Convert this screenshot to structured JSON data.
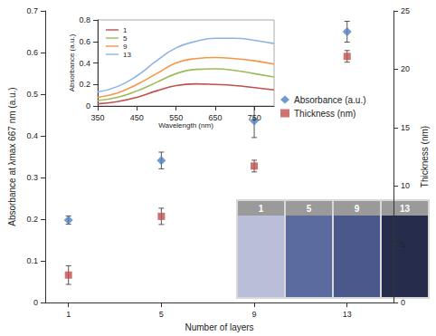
{
  "chart_data": [
    {
      "type": "scatter",
      "xlabel": "Number of layers",
      "ylabel": "Absorbance at λmax 667 nm (a.u.)",
      "y2label": "Thickness (nm)",
      "xlim": [
        0,
        15
      ],
      "xticks": [
        1,
        5,
        9,
        13
      ],
      "ylim": [
        0,
        0.7
      ],
      "yticks": [
        0,
        0.1,
        0.2,
        0.3,
        0.4,
        0.5,
        0.6,
        0.7
      ],
      "y2lim": [
        0,
        25
      ],
      "y2ticks": [
        0,
        5,
        10,
        15,
        20,
        25
      ],
      "grid": false,
      "legend": "right",
      "series": [
        {
          "name": "Absorbance (a.u.)",
          "color": "#4f81bd",
          "marker": "diamond",
          "x": [
            1,
            5,
            9,
            13
          ],
          "values": [
            0.198,
            0.341,
            0.436,
            0.65
          ],
          "errors": [
            0.01,
            0.02,
            0.04,
            0.025
          ]
        },
        {
          "name": "Thickness (nm)",
          "color": "#c0504d",
          "marker": "square",
          "axis": "y2",
          "x": [
            1,
            5,
            9,
            13
          ],
          "values": [
            2.36,
            7.39,
            11.7,
            21.1
          ],
          "errors": [
            0.8,
            0.7,
            0.5,
            0.5
          ]
        }
      ]
    },
    {
      "type": "line",
      "xlabel": "Wavelength (nm)",
      "ylabel": "Absorbance (a.u.)",
      "xlim": [
        350,
        800
      ],
      "xticks": [
        350,
        450,
        550,
        650,
        750
      ],
      "ylim": [
        0,
        0.8
      ],
      "yticks": [
        0,
        0.2,
        0.4,
        0.6,
        0.8
      ],
      "grid": false,
      "legend": "upper left",
      "x": [
        350,
        400,
        450,
        500,
        550,
        600,
        650,
        700,
        750,
        800
      ],
      "series": [
        {
          "name": "1",
          "color": "#c0504d",
          "values": [
            0.02,
            0.04,
            0.08,
            0.14,
            0.19,
            0.205,
            0.2,
            0.19,
            0.17,
            0.15
          ]
        },
        {
          "name": "5",
          "color": "#9bbb59",
          "values": [
            0.05,
            0.08,
            0.14,
            0.22,
            0.3,
            0.34,
            0.345,
            0.33,
            0.3,
            0.27
          ]
        },
        {
          "name": "9",
          "color": "#f79646",
          "values": [
            0.08,
            0.12,
            0.2,
            0.3,
            0.4,
            0.44,
            0.45,
            0.44,
            0.42,
            0.39
          ]
        },
        {
          "name": "13",
          "color": "#8eb4e3",
          "values": [
            0.13,
            0.18,
            0.28,
            0.42,
            0.54,
            0.6,
            0.63,
            0.63,
            0.61,
            0.58
          ]
        }
      ]
    },
    {
      "type": "image",
      "categories": [
        "1",
        "5",
        "9",
        "13"
      ],
      "colors": [
        "#b9bfd9",
        "#5b6a9f",
        "#4a588c",
        "#262c4c"
      ]
    }
  ]
}
